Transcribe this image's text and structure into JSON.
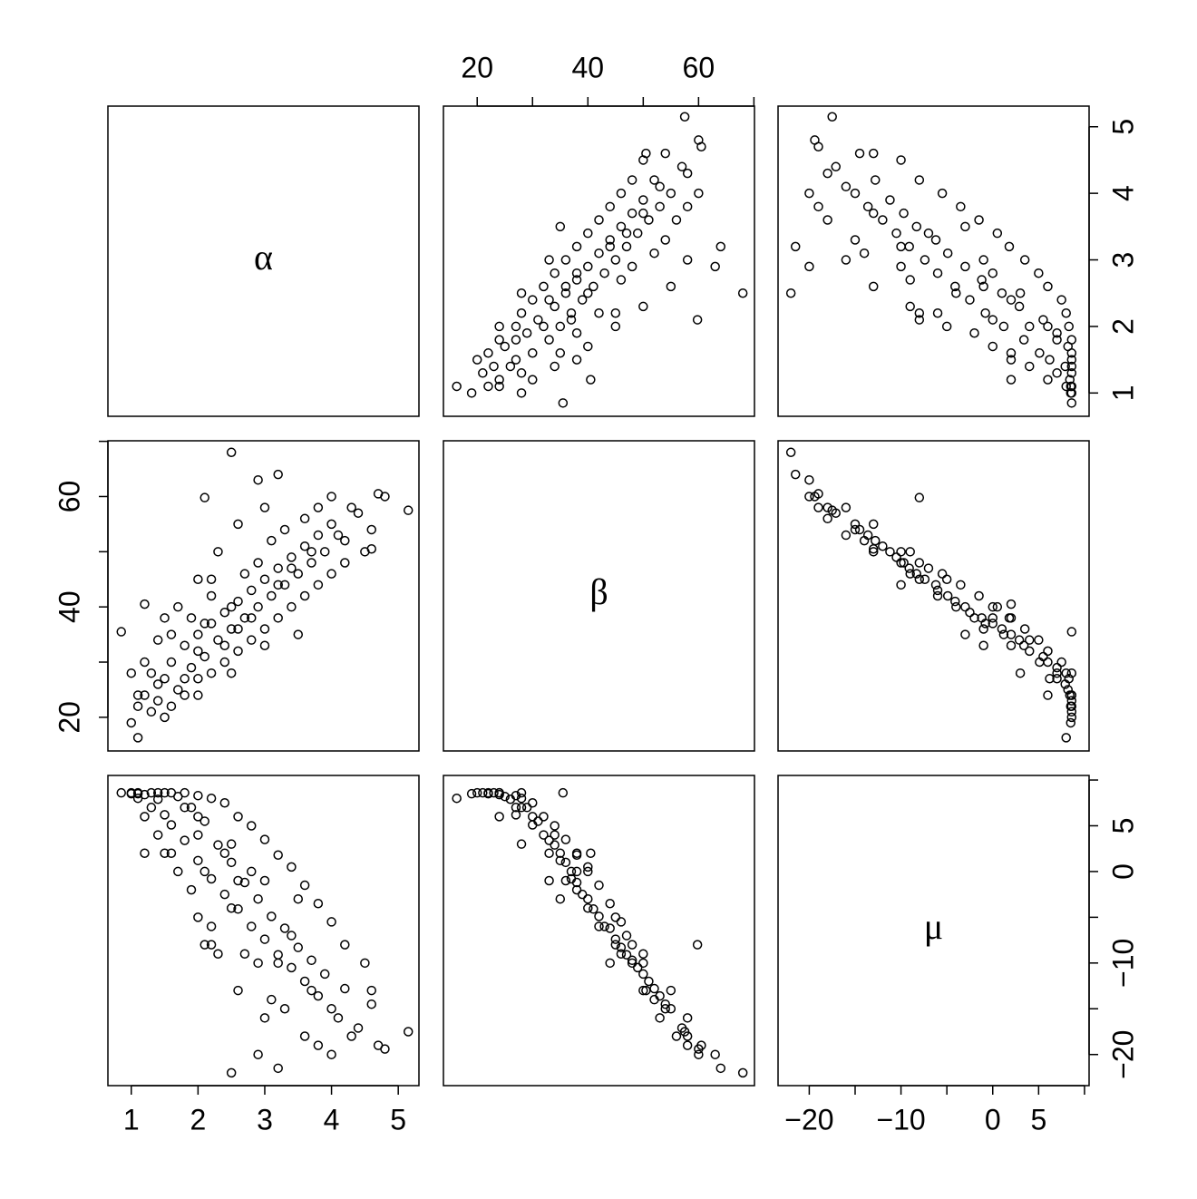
{
  "chart_data": {
    "type": "pairs",
    "color": "#000000",
    "variables": [
      {
        "name": "α",
        "lim": [
          0.65,
          5.31
        ],
        "ticks": [
          1,
          2,
          3,
          4,
          5
        ],
        "values": [
          1.1,
          1.2,
          1.3,
          1.4,
          1.5,
          1.0,
          1.6,
          1.7,
          1.8,
          1.9,
          2.0,
          2.1,
          2.2,
          2.3,
          2.4,
          2.5,
          2.6,
          2.7,
          2.8,
          2.9,
          3.0,
          3.1,
          3.2,
          3.3,
          3.4,
          3.5,
          3.6,
          3.7,
          3.8,
          3.9,
          4.0,
          4.2,
          4.4,
          4.6,
          4.8,
          5.15,
          2.5,
          0.85,
          1.1,
          1.5,
          2.0,
          2.3,
          2.6,
          3.0,
          3.2,
          1.2,
          1.4,
          1.6,
          1.8,
          2.0,
          2.2,
          2.4,
          2.6,
          2.8,
          3.0,
          3.2,
          3.4,
          3.6,
          3.8,
          4.0,
          4.2,
          4.5,
          3.5,
          3.0,
          2.5,
          2.0,
          1.5,
          1.3,
          1.9,
          2.2,
          2.7,
          3.1,
          3.6,
          4.0,
          1.7,
          1.1,
          2.0,
          2.5,
          2.9,
          3.3,
          2.2,
          1.6,
          2.8,
          3.8,
          4.3,
          4.7,
          2.1,
          2.9,
          4.6,
          1.2,
          1.0,
          3.7,
          2.4,
          1.8,
          2.6,
          3.4,
          2.1,
          1.4,
          4.1,
          3.2
        ]
      },
      {
        "name": "β",
        "lim": [
          13.9,
          70.1
        ],
        "ticks": [
          20,
          40,
          60
        ],
        "minor_ticks": [
          30,
          50,
          70
        ],
        "values": [
          22,
          24,
          21,
          26,
          27,
          19,
          30,
          25,
          33,
          29,
          35,
          31,
          37,
          34,
          39,
          36,
          41,
          38,
          43,
          40,
          45,
          42,
          47,
          44,
          49,
          46,
          51,
          48,
          53,
          50,
          55,
          52,
          57,
          54,
          60,
          57.5,
          68,
          35.5,
          16.3,
          38,
          45,
          50,
          55,
          58,
          64,
          30,
          34,
          22,
          24,
          27,
          28,
          30,
          32,
          34,
          36,
          38,
          40,
          42,
          44,
          46,
          48,
          50,
          35,
          33,
          28,
          24,
          20,
          28,
          38,
          42,
          46,
          52,
          56,
          60,
          40,
          24,
          32,
          40,
          48,
          54,
          45,
          35,
          38,
          58,
          58,
          60.5,
          59.8,
          63,
          50.5,
          40.5,
          28,
          50,
          33,
          27,
          36,
          47,
          37,
          23,
          53,
          44
        ]
      },
      {
        "name": "μ",
        "lim": [
          -23.4,
          10.5
        ],
        "ticks": [
          {
            "value": -20,
            "label": "−20"
          },
          {
            "value": -10,
            "label": "−10"
          },
          0,
          5
        ],
        "minor_ticks": [
          -15,
          -5,
          10
        ],
        "values": [
          8.5,
          8.4,
          8.6,
          7.9,
          6.2,
          8.5,
          5.1,
          8.2,
          3.4,
          7.0,
          1.2,
          5.5,
          -0.8,
          2.9,
          -2.5,
          1.0,
          -4.1,
          -1.2,
          -6.0,
          -3.0,
          -7.4,
          -4.9,
          -9.1,
          -6.2,
          -10.5,
          -8.3,
          -12.0,
          -9.7,
          -13.6,
          -11.2,
          -15.0,
          -12.8,
          -17.1,
          -14.5,
          -19.4,
          -17.5,
          -22.0,
          8.6,
          8.0,
          2.0,
          -5,
          -9,
          -13,
          -16,
          -21.5,
          6,
          4,
          8.6,
          8.6,
          8.3,
          8.0,
          7.5,
          6.0,
          5.0,
          3.5,
          1.8,
          0.5,
          -1.5,
          -3.5,
          -5.5,
          -8,
          -10,
          -3,
          -1,
          3,
          6,
          8.6,
          7,
          -2,
          -6,
          -9,
          -14,
          -18,
          -20,
          0,
          8.6,
          4,
          -4,
          -10,
          -15,
          -8,
          2,
          0,
          -19,
          -18,
          -19,
          -8,
          -20,
          -13,
          2,
          8.6,
          -13,
          2,
          7,
          -1,
          -7,
          0,
          8.6,
          -16,
          -10
        ]
      }
    ]
  }
}
